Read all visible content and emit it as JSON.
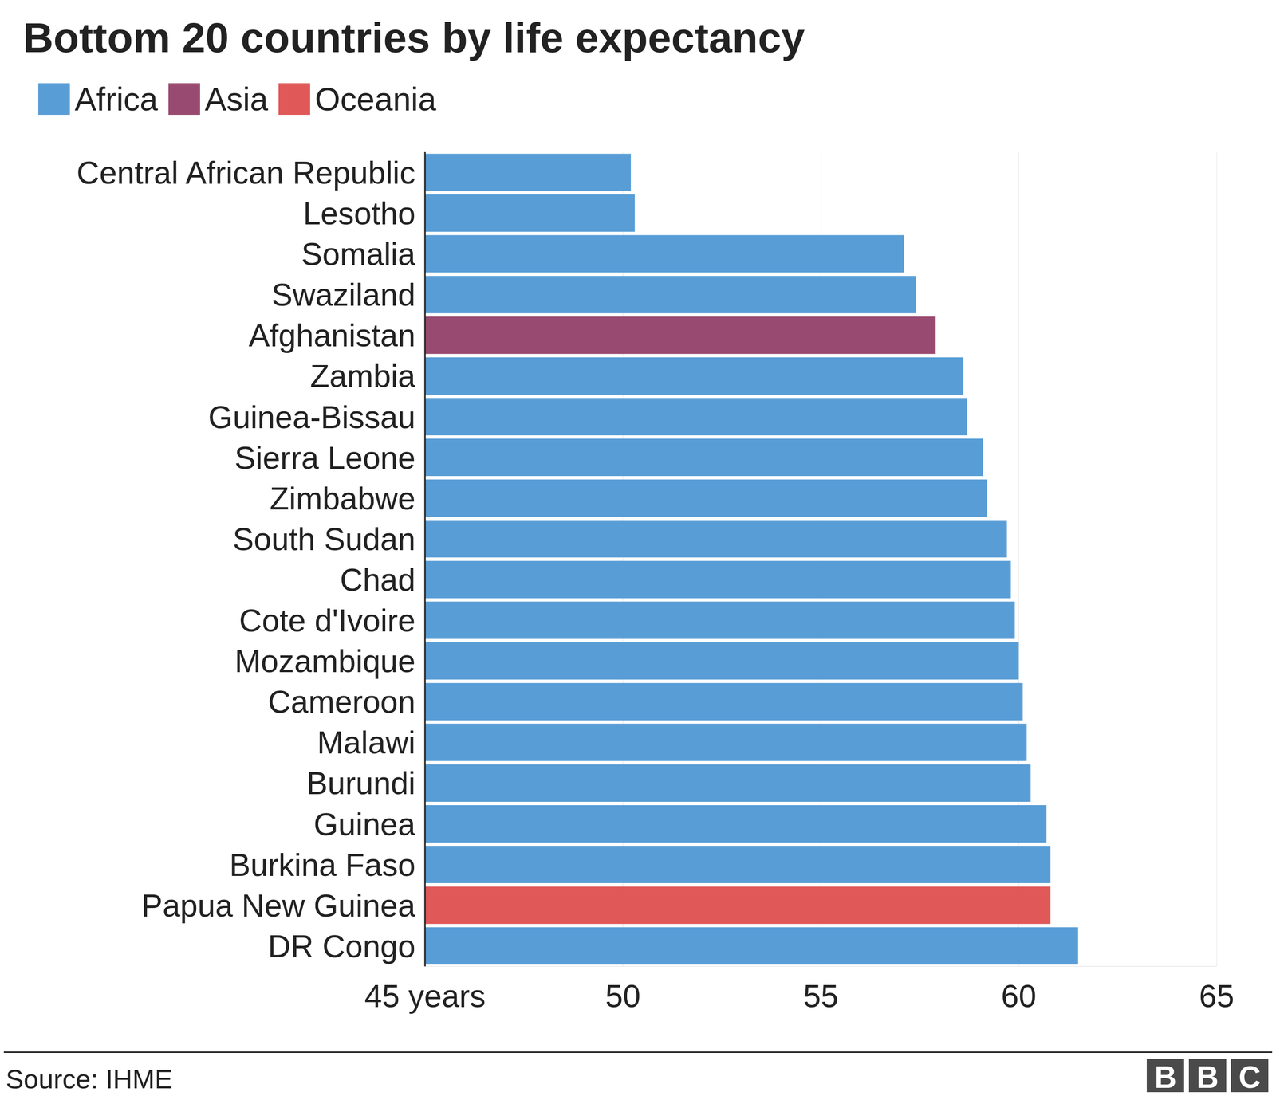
{
  "chart_data": {
    "type": "bar",
    "title": "Bottom 20 countries by life expectancy",
    "orientation": "horizontal",
    "categories": [
      "Central African Republic",
      "Lesotho",
      "Somalia",
      "Swaziland",
      "Afghanistan",
      "Zambia",
      "Guinea-Bissau",
      "Sierra Leone",
      "Zimbabwe",
      "South Sudan",
      "Chad",
      "Cote d'Ivoire",
      "Mozambique",
      "Cameroon",
      "Malawi",
      "Burundi",
      "Guinea",
      "Burkina Faso",
      "Papua New Guinea",
      "DR Congo"
    ],
    "series": [
      {
        "name": "Africa",
        "color": "#589dd6",
        "values": [
          50.2,
          50.3,
          57.1,
          57.4,
          null,
          58.6,
          58.7,
          59.1,
          59.2,
          59.7,
          59.8,
          59.9,
          60.0,
          60.1,
          60.2,
          60.3,
          60.7,
          60.8,
          null,
          61.5
        ]
      },
      {
        "name": "Asia",
        "color": "#994a70",
        "values": [
          null,
          null,
          null,
          null,
          57.9,
          null,
          null,
          null,
          null,
          null,
          null,
          null,
          null,
          null,
          null,
          null,
          null,
          null,
          null,
          null
        ]
      },
      {
        "name": "Oceania",
        "color": "#e05858",
        "values": [
          null,
          null,
          null,
          null,
          null,
          null,
          null,
          null,
          null,
          null,
          null,
          null,
          null,
          null,
          null,
          null,
          null,
          null,
          60.8,
          null
        ]
      }
    ],
    "xlim": [
      45,
      65
    ],
    "xticks": [
      {
        "value": 45,
        "label": "45 years"
      },
      50,
      55,
      60,
      65
    ],
    "grid": true,
    "legend": "top-left",
    "source": "Source: IHME",
    "credit": "BBC"
  }
}
